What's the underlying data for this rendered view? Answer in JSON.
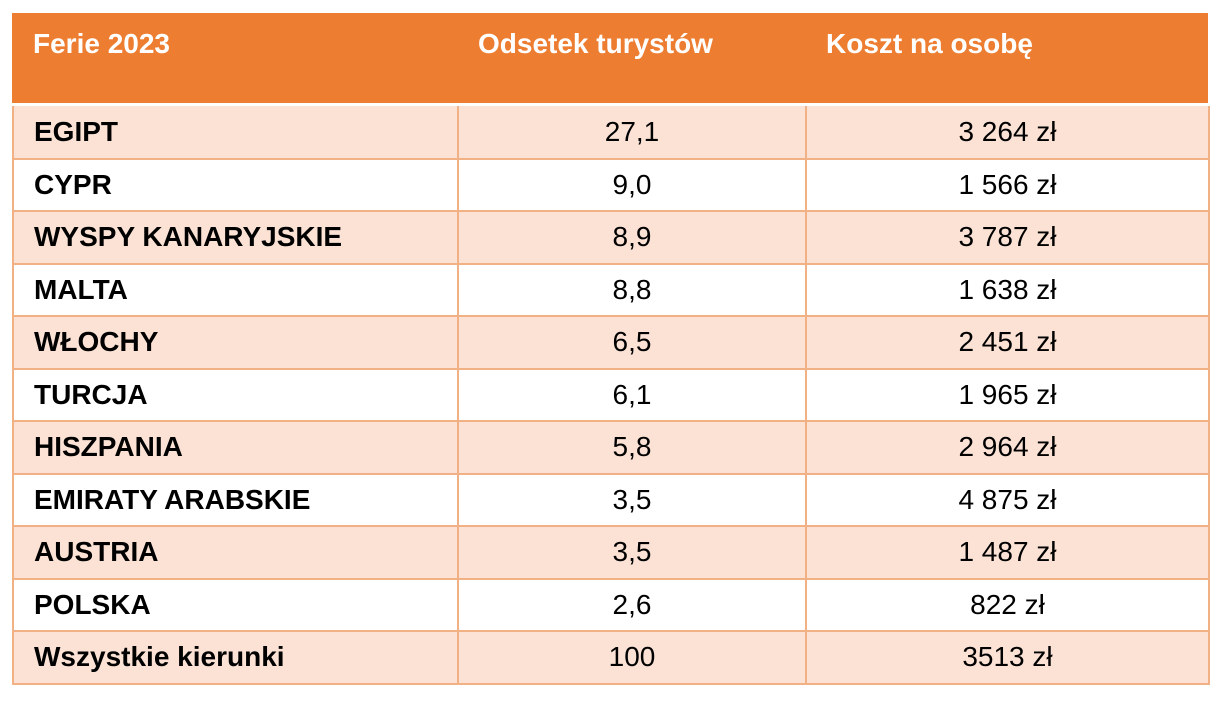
{
  "colors": {
    "header_bg": "#ED7D31",
    "header_text": "#FFFFFF",
    "stripe_bg": "#FBE2D5",
    "white_bg": "#FFFFFF",
    "border": "#F2B184",
    "body_text": "#000000"
  },
  "table": {
    "columns": [
      "Ferie 2023",
      "Odsetek turystów",
      "Koszt na osobę"
    ],
    "rows": [
      [
        "EGIPT",
        "27,1",
        "3 264 zł"
      ],
      [
        "CYPR",
        "9,0",
        "1 566 zł"
      ],
      [
        "WYSPY KANARYJSKIE",
        "8,9",
        "3 787 zł"
      ],
      [
        "MALTA",
        "8,8",
        "1 638 zł"
      ],
      [
        "WŁOCHY",
        "6,5",
        "2 451 zł"
      ],
      [
        "TURCJA",
        "6,1",
        "1 965 zł"
      ],
      [
        "HISZPANIA",
        "5,8",
        "2 964 zł"
      ],
      [
        "EMIRATY ARABSKIE",
        "3,5",
        "4 875 zł"
      ],
      [
        "AUSTRIA",
        "3,5",
        "1 487 zł"
      ],
      [
        "POLSKA",
        "2,6",
        "822 zł"
      ],
      [
        "Wszystkie kierunki",
        "100",
        "3513 zł"
      ]
    ]
  },
  "chart_data": {
    "type": "table",
    "title": "Ferie 2023",
    "columns": [
      "Ferie 2023",
      "Odsetek turystów",
      "Koszt na osobę"
    ],
    "rows": [
      {
        "kierunek": "EGIPT",
        "odsetek_turystow": 27.1,
        "koszt_na_osobe_zl": 3264
      },
      {
        "kierunek": "CYPR",
        "odsetek_turystow": 9.0,
        "koszt_na_osobe_zl": 1566
      },
      {
        "kierunek": "WYSPY KANARYJSKIE",
        "odsetek_turystow": 8.9,
        "koszt_na_osobe_zl": 3787
      },
      {
        "kierunek": "MALTA",
        "odsetek_turystow": 8.8,
        "koszt_na_osobe_zl": 1638
      },
      {
        "kierunek": "WŁOCHY",
        "odsetek_turystow": 6.5,
        "koszt_na_osobe_zl": 2451
      },
      {
        "kierunek": "TURCJA",
        "odsetek_turystow": 6.1,
        "koszt_na_osobe_zl": 1965
      },
      {
        "kierunek": "HISZPANIA",
        "odsetek_turystow": 5.8,
        "koszt_na_osobe_zl": 2964
      },
      {
        "kierunek": "EMIRATY ARABSKIE",
        "odsetek_turystow": 3.5,
        "koszt_na_osobe_zl": 4875
      },
      {
        "kierunek": "AUSTRIA",
        "odsetek_turystow": 3.5,
        "koszt_na_osobe_zl": 1487
      },
      {
        "kierunek": "POLSKA",
        "odsetek_turystow": 2.6,
        "koszt_na_osobe_zl": 822
      },
      {
        "kierunek": "Wszystkie kierunki",
        "odsetek_turystow": 100,
        "koszt_na_osobe_zl": 3513
      }
    ]
  }
}
